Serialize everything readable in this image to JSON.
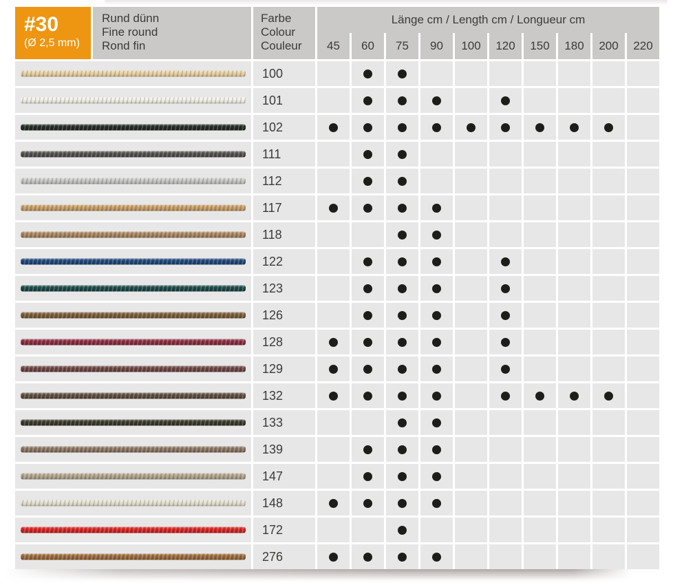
{
  "header": {
    "product_code": "#30",
    "diameter": "(Ø 2,5 mm)",
    "description_lines": [
      "Rund dünn",
      "Fine round",
      "Rond fin"
    ],
    "color_column_lines": [
      "Farbe",
      "Colour",
      "Couleur"
    ],
    "length_header": "Länge cm / Length cm / Longueur cm",
    "lengths": [
      45,
      60,
      75,
      90,
      100,
      120,
      150,
      180,
      200,
      220
    ]
  },
  "colors": {
    "accent_orange": "#ee9611",
    "header_bg": "#cbc8c8",
    "cell_bg": "#e8e7e7",
    "dot": "#1d1d1b",
    "text": "#3b3b3a",
    "page_bg": "#ffffff"
  },
  "rows": [
    {
      "code": "100",
      "cord_color": "#e8d0a2",
      "available": [
        60,
        75
      ]
    },
    {
      "code": "101",
      "cord_color": "#f2efe6",
      "available": [
        60,
        75,
        90,
        120
      ]
    },
    {
      "code": "102",
      "cord_color": "#262d26",
      "available": [
        45,
        60,
        75,
        90,
        100,
        120,
        150,
        180,
        200
      ]
    },
    {
      "code": "111",
      "cord_color": "#54524e",
      "available": [
        60,
        75
      ]
    },
    {
      "code": "112",
      "cord_color": "#c6c6c4",
      "available": [
        60,
        75
      ]
    },
    {
      "code": "117",
      "cord_color": "#c79f66",
      "available": [
        45,
        60,
        75,
        90
      ]
    },
    {
      "code": "118",
      "cord_color": "#a9865f",
      "available": [
        75,
        90
      ]
    },
    {
      "code": "122",
      "cord_color": "#20497c",
      "available": [
        60,
        75,
        90,
        120
      ]
    },
    {
      "code": "123",
      "cord_color": "#1d4a48",
      "available": [
        60,
        75,
        90,
        120
      ]
    },
    {
      "code": "126",
      "cord_color": "#7c5e3b",
      "available": [
        60,
        75,
        90,
        120
      ]
    },
    {
      "code": "128",
      "cord_color": "#8d2e42",
      "available": [
        45,
        60,
        75,
        90,
        120
      ]
    },
    {
      "code": "129",
      "cord_color": "#6f4744",
      "available": [
        45,
        60,
        75,
        90,
        120
      ]
    },
    {
      "code": "132",
      "cord_color": "#5f4f40",
      "available": [
        45,
        60,
        75,
        90,
        120,
        150,
        180,
        200
      ]
    },
    {
      "code": "133",
      "cord_color": "#3d392c",
      "available": [
        75,
        90
      ]
    },
    {
      "code": "139",
      "cord_color": "#8c7663",
      "available": [
        60,
        75,
        90
      ]
    },
    {
      "code": "147",
      "cord_color": "#b1a58b",
      "available": [
        60,
        75,
        90
      ]
    },
    {
      "code": "148",
      "cord_color": "#e3e0cf",
      "available": [
        45,
        60,
        75,
        90
      ]
    },
    {
      "code": "172",
      "cord_color": "#d92424",
      "available": [
        75
      ]
    },
    {
      "code": "276",
      "cord_color": "#9d6b3c",
      "available": [
        45,
        60,
        75,
        90
      ]
    }
  ]
}
